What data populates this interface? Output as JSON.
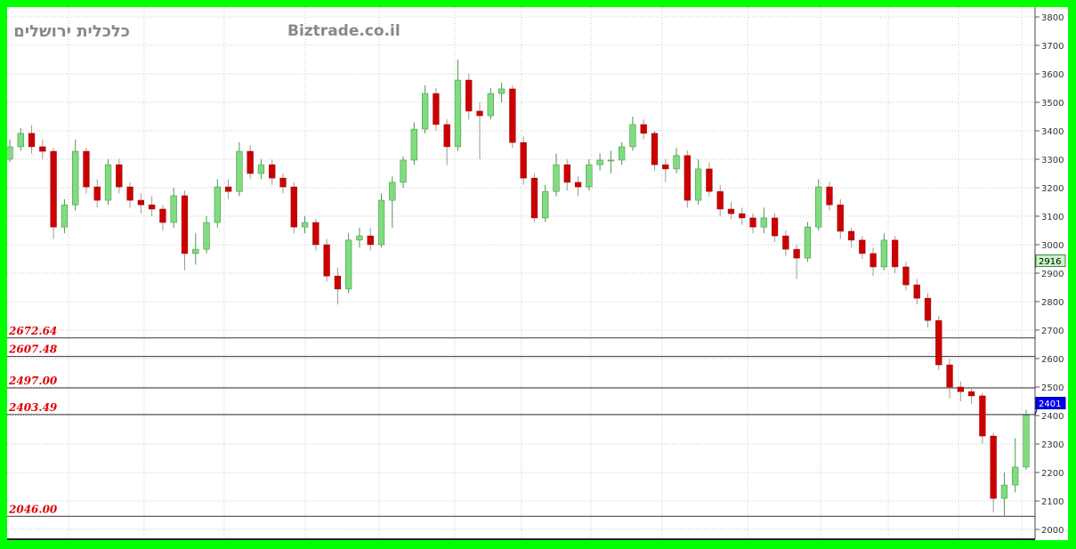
{
  "header": {
    "left_title": "כלכלית ירושלים",
    "watermark": "Biztrade.co.il"
  },
  "colors": {
    "up": "#7fdc7f",
    "down": "#cc0000",
    "level_label": "#e00000",
    "last_price_bg": "#0000ee",
    "marker_bg": "#c8f5c8",
    "frame": "#00ff00"
  },
  "markers": [
    {
      "value": 2916,
      "label": "2916",
      "style": "green"
    },
    {
      "value": 2401,
      "label": "2401",
      "style": "blue"
    }
  ],
  "chart_data": {
    "type": "candlestick",
    "title": "",
    "xlabel": "",
    "ylabel": "",
    "ylim": [
      1970,
      3830
    ],
    "y_ticks": [
      2000,
      2100,
      2200,
      2300,
      2400,
      2500,
      2600,
      2700,
      2800,
      2900,
      3000,
      3100,
      3200,
      3300,
      3400,
      3500,
      3600,
      3700,
      3800
    ],
    "y_tick_labels": [
      "2000",
      "2100",
      "2200",
      "2300",
      "2400",
      "2500",
      "2600",
      "2700",
      "2800",
      "2900",
      "3000",
      "3100",
      "3200",
      "3300",
      "3400",
      "3500",
      "3600",
      "3700",
      "3800"
    ],
    "y_axis_position": "right",
    "grid": true,
    "levels": [
      {
        "value": 2672.64,
        "label": "2672.64"
      },
      {
        "value": 2607.48,
        "label": "2607.48"
      },
      {
        "value": 2497.0,
        "label": "2497.00"
      },
      {
        "value": 2403.49,
        "label": "2403.49"
      },
      {
        "value": 2046.0,
        "label": "2046.00"
      }
    ],
    "ohlc": [
      [
        3300,
        3370,
        3290,
        3344
      ],
      [
        3344,
        3410,
        3330,
        3391
      ],
      [
        3391,
        3420,
        3320,
        3344
      ],
      [
        3344,
        3370,
        3300,
        3328
      ],
      [
        3328,
        3340,
        3020,
        3062
      ],
      [
        3062,
        3160,
        3040,
        3140
      ],
      [
        3140,
        3370,
        3120,
        3328
      ],
      [
        3328,
        3340,
        3180,
        3203
      ],
      [
        3203,
        3230,
        3130,
        3156
      ],
      [
        3156,
        3300,
        3140,
        3281
      ],
      [
        3281,
        3300,
        3180,
        3203
      ],
      [
        3203,
        3220,
        3130,
        3156
      ],
      [
        3156,
        3180,
        3110,
        3140
      ],
      [
        3140,
        3170,
        3100,
        3125
      ],
      [
        3125,
        3140,
        3050,
        3078
      ],
      [
        3078,
        3200,
        3060,
        3172
      ],
      [
        3172,
        3190,
        2910,
        2969
      ],
      [
        2969,
        3040,
        2930,
        2984
      ],
      [
        2984,
        3100,
        2970,
        3078
      ],
      [
        3078,
        3230,
        3060,
        3203
      ],
      [
        3203,
        3230,
        3160,
        3187
      ],
      [
        3187,
        3360,
        3170,
        3328
      ],
      [
        3328,
        3350,
        3230,
        3250
      ],
      [
        3250,
        3300,
        3230,
        3281
      ],
      [
        3281,
        3300,
        3210,
        3234
      ],
      [
        3234,
        3250,
        3180,
        3203
      ],
      [
        3203,
        3220,
        3040,
        3062
      ],
      [
        3062,
        3100,
        3040,
        3078
      ],
      [
        3078,
        3090,
        2980,
        3000
      ],
      [
        3000,
        3020,
        2870,
        2890
      ],
      [
        2890,
        2920,
        2790,
        2844
      ],
      [
        2844,
        3040,
        2830,
        3016
      ],
      [
        3016,
        3060,
        2990,
        3031
      ],
      [
        3031,
        3060,
        2980,
        3000
      ],
      [
        3000,
        3180,
        2990,
        3156
      ],
      [
        3156,
        3240,
        3060,
        3219
      ],
      [
        3219,
        3310,
        3200,
        3297
      ],
      [
        3297,
        3430,
        3280,
        3406
      ],
      [
        3406,
        3560,
        3390,
        3531
      ],
      [
        3531,
        3550,
        3400,
        3422
      ],
      [
        3422,
        3440,
        3280,
        3344
      ],
      [
        3344,
        3650,
        3330,
        3578
      ],
      [
        3578,
        3600,
        3440,
        3469
      ],
      [
        3469,
        3500,
        3300,
        3453
      ],
      [
        3453,
        3550,
        3440,
        3531
      ],
      [
        3531,
        3570,
        3500,
        3547
      ],
      [
        3547,
        3560,
        3340,
        3359
      ],
      [
        3359,
        3380,
        3210,
        3234
      ],
      [
        3234,
        3250,
        3080,
        3094
      ],
      [
        3094,
        3210,
        3080,
        3187
      ],
      [
        3187,
        3320,
        3170,
        3281
      ],
      [
        3281,
        3300,
        3190,
        3219
      ],
      [
        3219,
        3240,
        3170,
        3203
      ],
      [
        3203,
        3300,
        3190,
        3281
      ],
      [
        3281,
        3320,
        3260,
        3297
      ],
      [
        3297,
        3330,
        3250,
        3297
      ],
      [
        3297,
        3360,
        3280,
        3344
      ],
      [
        3344,
        3450,
        3330,
        3422
      ],
      [
        3422,
        3440,
        3370,
        3391
      ],
      [
        3391,
        3400,
        3260,
        3281
      ],
      [
        3281,
        3300,
        3220,
        3266
      ],
      [
        3266,
        3340,
        3250,
        3313
      ],
      [
        3313,
        3330,
        3130,
        3156
      ],
      [
        3156,
        3300,
        3140,
        3266
      ],
      [
        3266,
        3290,
        3170,
        3187
      ],
      [
        3187,
        3210,
        3100,
        3125
      ],
      [
        3125,
        3150,
        3090,
        3109
      ],
      [
        3109,
        3130,
        3070,
        3094
      ],
      [
        3094,
        3110,
        3040,
        3062
      ],
      [
        3062,
        3130,
        3040,
        3094
      ],
      [
        3094,
        3110,
        3010,
        3031
      ],
      [
        3031,
        3050,
        2960,
        2984
      ],
      [
        2984,
        3000,
        2880,
        2953
      ],
      [
        2953,
        3080,
        2940,
        3062
      ],
      [
        3062,
        3230,
        3050,
        3203
      ],
      [
        3203,
        3220,
        3120,
        3140
      ],
      [
        3140,
        3160,
        3020,
        3047
      ],
      [
        3047,
        3060,
        2990,
        3016
      ],
      [
        3016,
        3030,
        2950,
        2969
      ],
      [
        2969,
        2990,
        2890,
        2922
      ],
      [
        2922,
        3040,
        2910,
        3016
      ],
      [
        3016,
        3030,
        2900,
        2922
      ],
      [
        2922,
        2940,
        2840,
        2859
      ],
      [
        2859,
        2880,
        2790,
        2812
      ],
      [
        2812,
        2830,
        2710,
        2734
      ],
      [
        2734,
        2750,
        2560,
        2578
      ],
      [
        2578,
        2600,
        2460,
        2500
      ],
      [
        2500,
        2520,
        2450,
        2484
      ],
      [
        2484,
        2500,
        2440,
        2469
      ],
      [
        2469,
        2480,
        2300,
        2328
      ],
      [
        2328,
        2340,
        2060,
        2109
      ],
      [
        2109,
        2200,
        2046,
        2156
      ],
      [
        2156,
        2320,
        2130,
        2219
      ],
      [
        2219,
        2420,
        2210,
        2401
      ]
    ]
  }
}
